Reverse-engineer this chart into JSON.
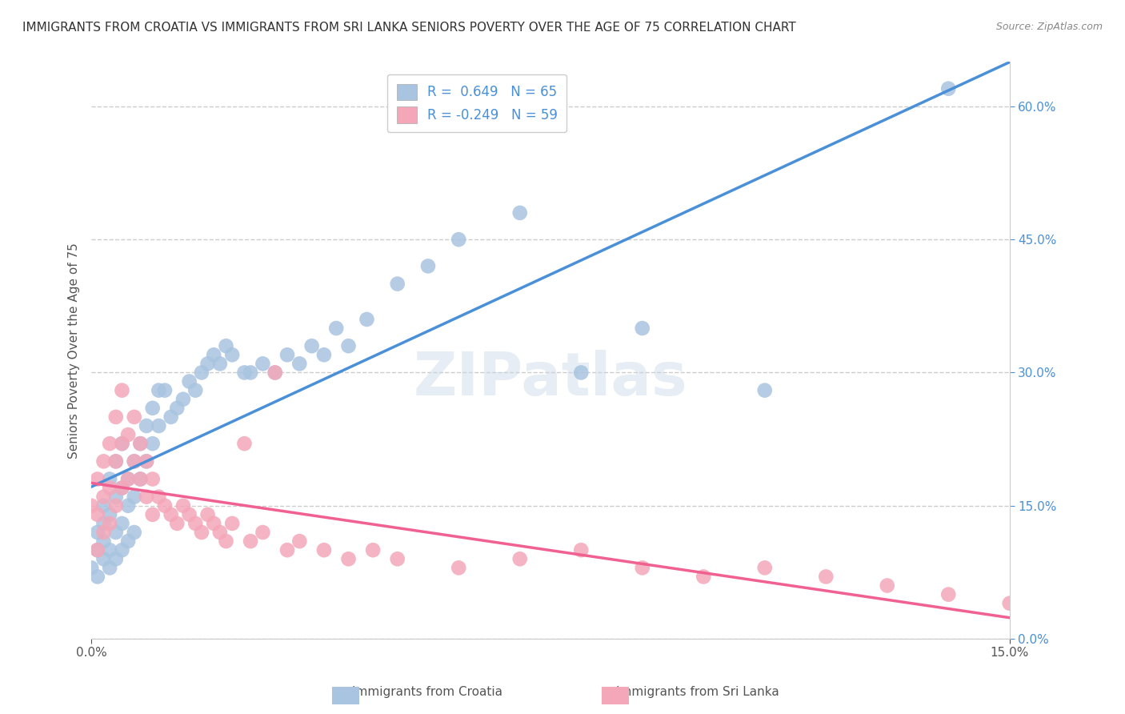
{
  "title": "IMMIGRANTS FROM CROATIA VS IMMIGRANTS FROM SRI LANKA SENIORS POVERTY OVER THE AGE OF 75 CORRELATION CHART",
  "source": "Source: ZipAtlas.com",
  "ylabel": "Seniors Poverty Over the Age of 75",
  "xlim": [
    0.0,
    0.15
  ],
  "ylim": [
    0.0,
    0.65
  ],
  "ytick_labels_right": [
    "0.0%",
    "15.0%",
    "30.0%",
    "45.0%",
    "60.0%"
  ],
  "yticks_right": [
    0.0,
    0.15,
    0.3,
    0.45,
    0.6
  ],
  "croatia_R": 0.649,
  "croatia_N": 65,
  "srilanka_R": -0.249,
  "srilanka_N": 59,
  "croatia_color": "#a8c4e0",
  "srilanka_color": "#f4a7b9",
  "croatia_line_color": "#4a90d9",
  "srilanka_line_color": "#f06090",
  "background_color": "#ffffff",
  "watermark": "ZIPatlas",
  "title_fontsize": 11,
  "legend_fontsize": 12,
  "croatia_x": [
    0.0,
    0.001,
    0.001,
    0.001,
    0.002,
    0.002,
    0.002,
    0.002,
    0.003,
    0.003,
    0.003,
    0.003,
    0.004,
    0.004,
    0.004,
    0.004,
    0.005,
    0.005,
    0.005,
    0.005,
    0.006,
    0.006,
    0.006,
    0.007,
    0.007,
    0.007,
    0.008,
    0.008,
    0.009,
    0.009,
    0.01,
    0.01,
    0.011,
    0.011,
    0.012,
    0.013,
    0.014,
    0.015,
    0.016,
    0.017,
    0.018,
    0.019,
    0.02,
    0.021,
    0.022,
    0.023,
    0.025,
    0.026,
    0.028,
    0.03,
    0.032,
    0.034,
    0.036,
    0.038,
    0.04,
    0.042,
    0.045,
    0.05,
    0.055,
    0.06,
    0.07,
    0.08,
    0.09,
    0.11,
    0.14
  ],
  "croatia_y": [
    0.08,
    0.12,
    0.1,
    0.07,
    0.15,
    0.13,
    0.09,
    0.11,
    0.18,
    0.14,
    0.1,
    0.08,
    0.2,
    0.16,
    0.12,
    0.09,
    0.22,
    0.17,
    0.13,
    0.1,
    0.18,
    0.15,
    0.11,
    0.2,
    0.16,
    0.12,
    0.22,
    0.18,
    0.24,
    0.2,
    0.26,
    0.22,
    0.28,
    0.24,
    0.28,
    0.25,
    0.26,
    0.27,
    0.29,
    0.28,
    0.3,
    0.31,
    0.32,
    0.31,
    0.33,
    0.32,
    0.3,
    0.3,
    0.31,
    0.3,
    0.32,
    0.31,
    0.33,
    0.32,
    0.35,
    0.33,
    0.36,
    0.4,
    0.42,
    0.45,
    0.48,
    0.3,
    0.35,
    0.28,
    0.62
  ],
  "srilanka_x": [
    0.0,
    0.001,
    0.001,
    0.001,
    0.002,
    0.002,
    0.002,
    0.003,
    0.003,
    0.003,
    0.004,
    0.004,
    0.004,
    0.005,
    0.005,
    0.005,
    0.006,
    0.006,
    0.007,
    0.007,
    0.008,
    0.008,
    0.009,
    0.009,
    0.01,
    0.01,
    0.011,
    0.012,
    0.013,
    0.014,
    0.015,
    0.016,
    0.017,
    0.018,
    0.019,
    0.02,
    0.021,
    0.022,
    0.023,
    0.025,
    0.026,
    0.028,
    0.03,
    0.032,
    0.034,
    0.038,
    0.042,
    0.046,
    0.05,
    0.06,
    0.07,
    0.08,
    0.09,
    0.1,
    0.11,
    0.12,
    0.13,
    0.14,
    0.15
  ],
  "srilanka_y": [
    0.15,
    0.18,
    0.14,
    0.1,
    0.2,
    0.16,
    0.12,
    0.22,
    0.17,
    0.13,
    0.25,
    0.2,
    0.15,
    0.28,
    0.22,
    0.17,
    0.23,
    0.18,
    0.25,
    0.2,
    0.22,
    0.18,
    0.2,
    0.16,
    0.18,
    0.14,
    0.16,
    0.15,
    0.14,
    0.13,
    0.15,
    0.14,
    0.13,
    0.12,
    0.14,
    0.13,
    0.12,
    0.11,
    0.13,
    0.22,
    0.11,
    0.12,
    0.3,
    0.1,
    0.11,
    0.1,
    0.09,
    0.1,
    0.09,
    0.08,
    0.09,
    0.1,
    0.08,
    0.07,
    0.08,
    0.07,
    0.06,
    0.05,
    0.04
  ]
}
